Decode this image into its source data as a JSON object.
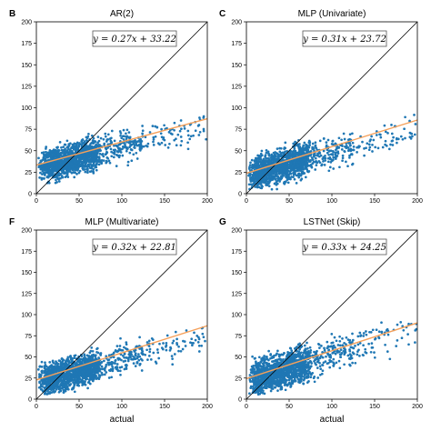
{
  "chart_data": [
    {
      "panel": "B",
      "title": "AR(2)",
      "type": "scatter",
      "xlabel": "",
      "ylabel": "",
      "xlim": [
        0,
        200
      ],
      "ylim": [
        0,
        200
      ],
      "xticks": [
        0,
        50,
        100,
        150,
        200
      ],
      "yticks": [
        0,
        25,
        50,
        75,
        100,
        125,
        150,
        175,
        200
      ],
      "equation": "y = 0.27x + 33.22",
      "fit": {
        "slope": 0.27,
        "intercept": 33.22
      },
      "point_color": "#1f77b4",
      "fit_color": "#f5a05a",
      "identity_color": "#000000",
      "cloud": {
        "y_base": 30,
        "y_slope": 0.24,
        "spread": 13,
        "n": 1500,
        "seed": 11
      }
    },
    {
      "panel": "C",
      "title": "MLP (Univariate)",
      "type": "scatter",
      "xlabel": "",
      "ylabel": "",
      "xlim": [
        0,
        200
      ],
      "ylim": [
        0,
        200
      ],
      "xticks": [
        0,
        50,
        100,
        150,
        200
      ],
      "yticks": [
        0,
        25,
        50,
        75,
        100,
        125,
        150,
        175,
        200
      ],
      "equation": "y = 0.31x + 23.72",
      "fit": {
        "slope": 0.31,
        "intercept": 23.72
      },
      "point_color": "#1f77b4",
      "fit_color": "#f5a05a",
      "identity_color": "#000000",
      "cloud": {
        "y_base": 22,
        "y_slope": 0.26,
        "spread": 14,
        "n": 1500,
        "seed": 23
      }
    },
    {
      "panel": "F",
      "title": "MLP (Multivariate)",
      "type": "scatter",
      "xlabel": "actual",
      "ylabel": "",
      "xlim": [
        0,
        200
      ],
      "ylim": [
        0,
        200
      ],
      "xticks": [
        0,
        50,
        100,
        150,
        200
      ],
      "yticks": [
        0,
        25,
        50,
        75,
        100,
        125,
        150,
        175,
        200
      ],
      "equation": "y = 0.32x + 22.81",
      "fit": {
        "slope": 0.32,
        "intercept": 22.81
      },
      "point_color": "#1f77b4",
      "fit_color": "#f5a05a",
      "identity_color": "#000000",
      "cloud": {
        "y_base": 20,
        "y_slope": 0.28,
        "spread": 13,
        "n": 1500,
        "seed": 37
      }
    },
    {
      "panel": "G",
      "title": "LSTNet (Skip)",
      "type": "scatter",
      "xlabel": "actual",
      "ylabel": "",
      "xlim": [
        0,
        200
      ],
      "ylim": [
        0,
        200
      ],
      "xticks": [
        0,
        50,
        100,
        150,
        200
      ],
      "yticks": [
        0,
        25,
        50,
        75,
        100,
        125,
        150,
        175,
        200
      ],
      "equation": "y = 0.33x + 24.25",
      "fit": {
        "slope": 0.33,
        "intercept": 24.25
      },
      "point_color": "#1f77b4",
      "fit_color": "#f5a05a",
      "identity_color": "#000000",
      "cloud": {
        "y_base": 22,
        "y_slope": 0.3,
        "spread": 15,
        "n": 1500,
        "seed": 53
      }
    }
  ]
}
